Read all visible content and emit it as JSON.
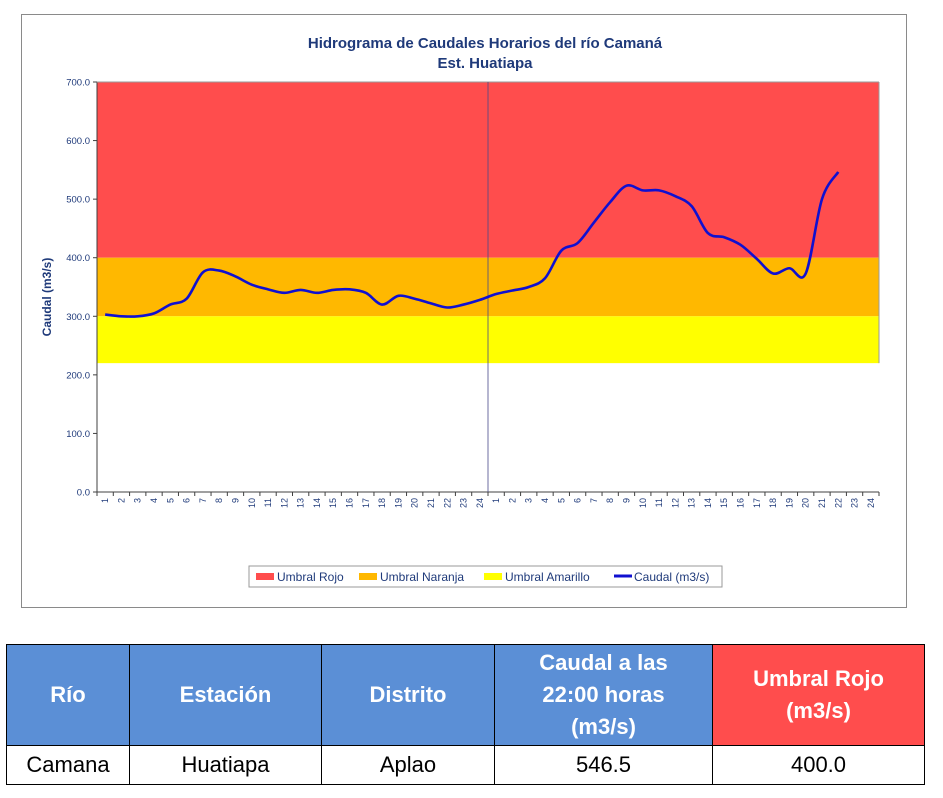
{
  "chart_data": {
    "type": "line",
    "title": "Hidrograma de Caudales Horarios del río Camaná",
    "subtitle": "Est. Huatiapa",
    "ylabel": "Caudal (m3/s)",
    "xlabel": "",
    "ylim": [
      0,
      700
    ],
    "yticks": [
      "0.0",
      "100.0",
      "200.0",
      "300.0",
      "400.0",
      "500.0",
      "600.0",
      "700.0"
    ],
    "x_tick_labels": [
      "1",
      "2",
      "3",
      "4",
      "5",
      "6",
      "7",
      "8",
      "9",
      "10",
      "11",
      "12",
      "13",
      "14",
      "15",
      "16",
      "17",
      "18",
      "19",
      "20",
      "21",
      "22",
      "23",
      "24",
      "1",
      "2",
      "3",
      "4",
      "5",
      "6",
      "7",
      "8",
      "9",
      "10",
      "11",
      "12",
      "13",
      "14",
      "15",
      "16",
      "17",
      "18",
      "19",
      "20",
      "21",
      "22",
      "23",
      "24"
    ],
    "grid": false,
    "legend_position": "bottom",
    "thresholds": [
      {
        "name": "Umbral Rojo",
        "from": 400,
        "to": 700,
        "color": "#ff4d4d"
      },
      {
        "name": "Umbral Naranja",
        "from": 300,
        "to": 400,
        "color": "#ffb800"
      },
      {
        "name": "Umbral Amarillo",
        "from": 220,
        "to": 300,
        "color": "#ffff00"
      }
    ],
    "series": [
      {
        "name": "Caudal (m3/s)",
        "color": "#1010d0",
        "values": [
          303,
          300,
          300,
          305,
          320,
          330,
          375,
          378,
          368,
          354,
          346,
          340,
          345,
          340,
          345,
          346,
          340,
          320,
          335,
          330,
          322,
          315,
          320,
          328,
          338,
          344,
          350,
          365,
          412,
          425,
          460,
          495,
          523,
          515,
          515,
          505,
          488,
          442,
          435,
          422,
          398,
          373,
          382,
          373,
          500,
          546.5
        ]
      }
    ]
  },
  "table": {
    "headers": [
      "Río",
      "Estación",
      "Distrito",
      "Caudal a las 22:00 horas (m3/s)",
      "Umbral  Rojo (m3/s)"
    ],
    "row": [
      "Camana",
      "Huatiapa",
      "Aplao",
      "546.5",
      "400.0"
    ]
  },
  "colors": {
    "header_blue": "#5b8fd6",
    "header_red": "#ff4d4d",
    "title_text": "#1f3a7a"
  }
}
